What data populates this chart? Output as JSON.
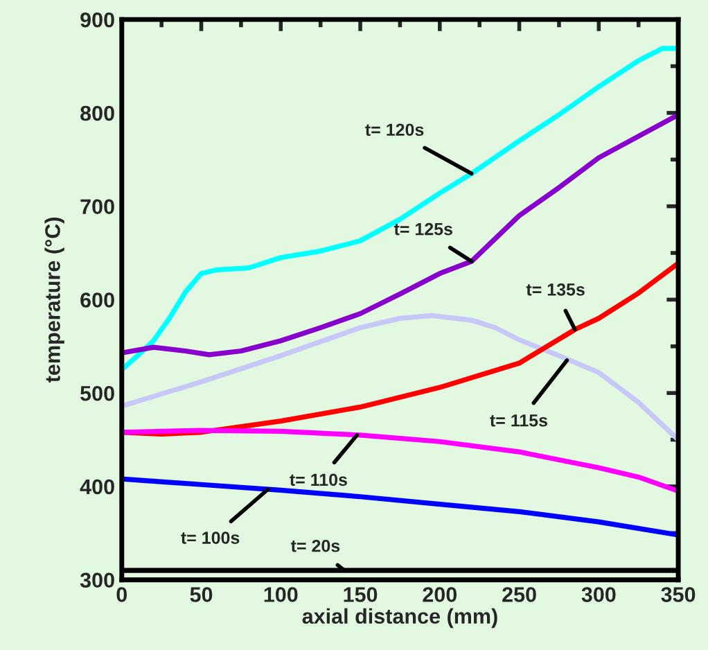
{
  "chart_data": {
    "type": "line",
    "xlabel": "axial distance (mm)",
    "ylabel": "temperature (°C)",
    "xlim": [
      0,
      350
    ],
    "ylim": [
      300,
      900
    ],
    "xticks": [
      0,
      50,
      100,
      150,
      200,
      250,
      300,
      350
    ],
    "yticks": [
      300,
      400,
      500,
      600,
      700,
      800,
      900
    ],
    "grid": false,
    "legend": false,
    "line_style": "solid",
    "marker": "none",
    "series": [
      {
        "color": "#00ffff",
        "x": [
          0,
          10,
          20,
          30,
          40,
          50,
          60,
          80,
          100,
          125,
          150,
          175,
          200,
          220,
          250,
          275,
          300,
          325,
          340,
          350
        ],
        "values": [
          525,
          540,
          556,
          580,
          608,
          628,
          632,
          634,
          645,
          652,
          663,
          686,
          714,
          735,
          770,
          798,
          828,
          856,
          869,
          869
        ]
      },
      {
        "color": "#8800cc",
        "x": [
          0,
          20,
          40,
          55,
          75,
          100,
          125,
          150,
          175,
          200,
          220,
          250,
          275,
          300,
          325,
          350
        ],
        "values": [
          543,
          549,
          545,
          541,
          545,
          556,
          570,
          585,
          606,
          628,
          641,
          690,
          720,
          752,
          775,
          798
        ]
      },
      {
        "color": "#c8c8f8",
        "x": [
          0,
          50,
          100,
          150,
          175,
          195,
          220,
          235,
          250,
          275,
          300,
          325,
          350
        ],
        "values": [
          486,
          512,
          540,
          570,
          580,
          583,
          578,
          570,
          557,
          540,
          522,
          490,
          450
        ]
      },
      {
        "color": "#ff0000",
        "x": [
          0,
          25,
          50,
          100,
          150,
          200,
          250,
          285,
          300,
          325,
          350
        ],
        "values": [
          458,
          456,
          458,
          470,
          485,
          506,
          532,
          568,
          580,
          607,
          639
        ]
      },
      {
        "color": "#ff00ff",
        "x": [
          0,
          50,
          100,
          150,
          200,
          250,
          300,
          325,
          350
        ],
        "values": [
          458,
          460,
          459,
          455,
          448,
          437,
          420,
          410,
          395
        ]
      },
      {
        "color": "#0000ff",
        "x": [
          0,
          50,
          100,
          150,
          200,
          250,
          300,
          350
        ],
        "values": [
          408,
          402,
          396,
          389,
          381,
          373,
          362,
          348
        ]
      },
      {
        "color": "#000000",
        "x": [
          0,
          350
        ],
        "values": [
          310,
          310
        ]
      }
    ],
    "annotations": [
      {
        "text": "t= 120s",
        "x": 220,
        "y": 735
      },
      {
        "text": "t= 125s",
        "x": 220,
        "y": 641
      },
      {
        "text": "t= 135s",
        "x": 285,
        "y": 568
      },
      {
        "text": "t= 115s",
        "x": 280,
        "y": 535
      },
      {
        "text": "t= 110s",
        "x": 148,
        "y": 455
      },
      {
        "text": "t= 100s",
        "x": 92,
        "y": 397
      },
      {
        "text": "t= 20s",
        "x": 140,
        "y": 310
      }
    ]
  }
}
